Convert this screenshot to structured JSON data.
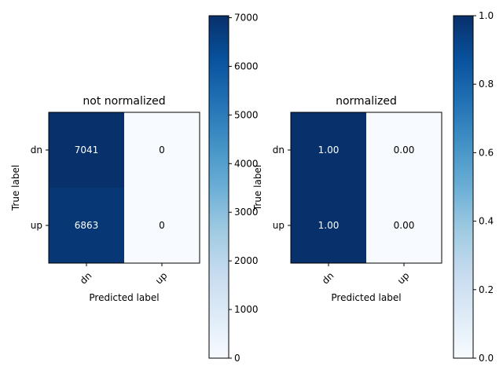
{
  "chart_data": [
    {
      "type": "heatmap",
      "title": "not normalized",
      "xlabel": "Predicted label",
      "ylabel": "True label",
      "x_categories": [
        "dn",
        "up"
      ],
      "y_categories": [
        "dn",
        "up"
      ],
      "values": [
        [
          7041,
          0
        ],
        [
          6863,
          0
        ]
      ],
      "cell_labels": [
        [
          "7041",
          "0"
        ],
        [
          "6863",
          "0"
        ]
      ],
      "colormap": "Blues",
      "colorbar": {
        "range": [
          0,
          7041
        ],
        "ticks": [
          0,
          1000,
          2000,
          3000,
          4000,
          5000,
          6000,
          7000
        ],
        "tick_labels": [
          "0",
          "1000",
          "2000",
          "3000",
          "4000",
          "5000",
          "6000",
          "7000"
        ]
      },
      "x_tick_rotation": 45,
      "grid": false
    },
    {
      "type": "heatmap",
      "title": "normalized",
      "xlabel": "Predicted label",
      "ylabel": "True label",
      "x_categories": [
        "dn",
        "up"
      ],
      "y_categories": [
        "dn",
        "up"
      ],
      "values": [
        [
          1.0,
          0.0
        ],
        [
          1.0,
          0.0
        ]
      ],
      "cell_labels": [
        [
          "1.00",
          "0.00"
        ],
        [
          "1.00",
          "0.00"
        ]
      ],
      "colormap": "Blues",
      "colorbar": {
        "range": [
          0,
          1
        ],
        "ticks": [
          0,
          0.2,
          0.4,
          0.6,
          0.8,
          1.0
        ],
        "tick_labels": [
          "0.0",
          "0.2",
          "0.4",
          "0.6",
          "0.8",
          "1.0"
        ]
      },
      "x_tick_rotation": 45,
      "grid": false
    }
  ]
}
